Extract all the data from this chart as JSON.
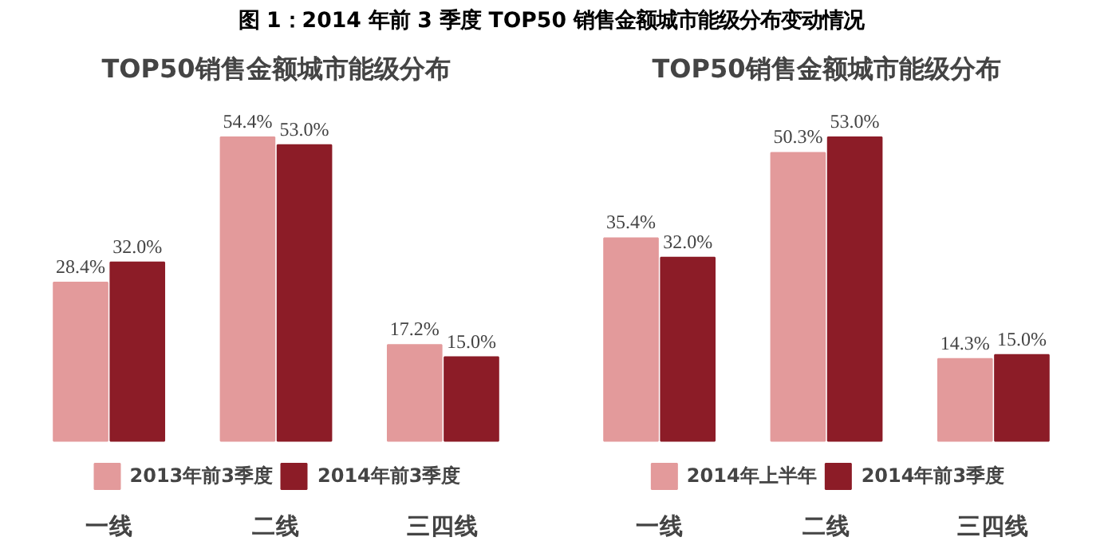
{
  "chart_data": [
    {
      "type": "bar",
      "title": "TOP50销售金额城市能级分布",
      "annotations": [
        "图 1：2014 年前 3 季度 TOP50 销售金额城市能级分布变动情况"
      ],
      "categories": [
        "一线",
        "二线",
        "三四线"
      ],
      "data_labels": true,
      "legend": "bottom",
      "series": [
        {
          "name": "2013年前3季度",
          "color": "#e39a9b",
          "values": [
            28.4,
            54.4,
            17.2
          ],
          "value_labels": [
            "28.4%",
            "54.4%",
            "17.2%"
          ]
        },
        {
          "name": "2014年前3季度",
          "color": "#8c1c27",
          "values": [
            32.0,
            53.0,
            15.0
          ],
          "value_labels": [
            "32.0%",
            "53.0%",
            "15.0%"
          ]
        }
      ]
    },
    {
      "type": "bar",
      "title": "TOP50销售金额城市能级分布",
      "categories": [
        "一线",
        "二线",
        "三四线"
      ],
      "data_labels": true,
      "legend": "bottom",
      "series": [
        {
          "name": "2014年上半年",
          "color": "#e39a9b",
          "values": [
            35.4,
            50.3,
            14.3
          ],
          "value_labels": [
            "35.4%",
            "50.3%",
            "14.3%"
          ]
        },
        {
          "name": "2014年前3季度",
          "color": "#8c1c27",
          "values": [
            32.0,
            53.0,
            15.0
          ],
          "value_labels": [
            "32.0%",
            "53.0%",
            "15.0%"
          ]
        }
      ]
    }
  ]
}
